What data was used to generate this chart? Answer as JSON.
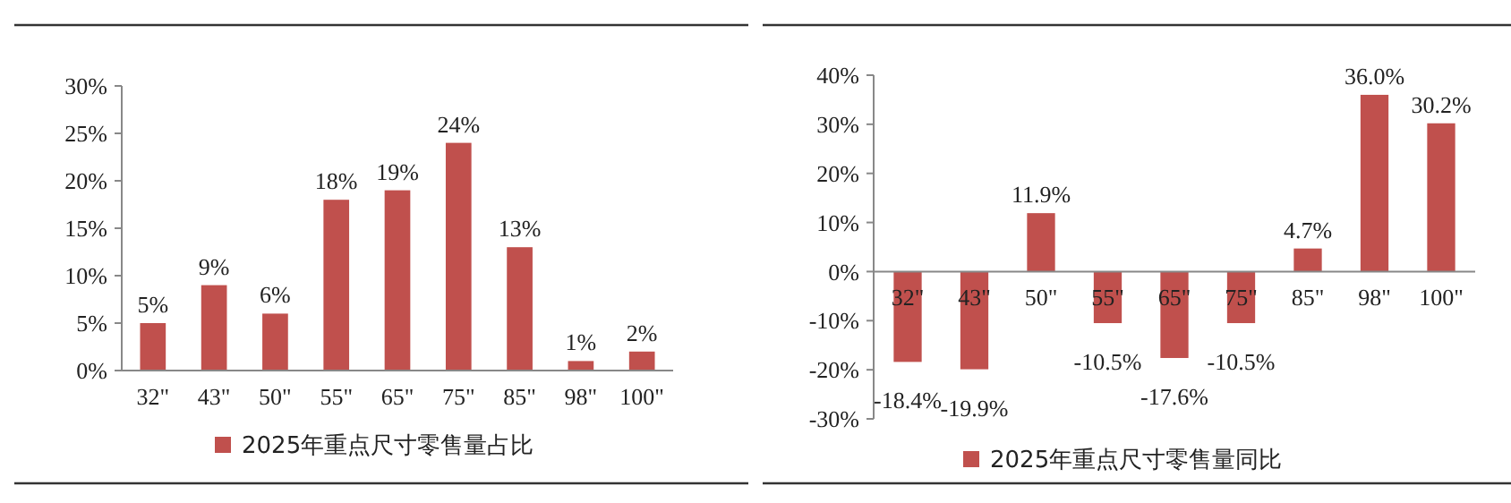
{
  "chart_data": [
    {
      "type": "bar",
      "categories": [
        "32\"",
        "43\"",
        "50\"",
        "55\"",
        "65\"",
        "75\"",
        "85\"",
        "98\"",
        "100\""
      ],
      "series": [
        {
          "name": "2025年重点尺寸零售量占比",
          "color": "#c0504d",
          "values": [
            5,
            9,
            6,
            18,
            19,
            24,
            13,
            1,
            2
          ],
          "value_labels": [
            "5%",
            "9%",
            "6%",
            "18%",
            "19%",
            "24%",
            "13%",
            "1%",
            "2%"
          ]
        }
      ],
      "ylim": [
        0,
        30
      ],
      "yticks": [
        {
          "value": 0,
          "label": "0%"
        },
        {
          "value": 5,
          "label": "5%"
        },
        {
          "value": 10,
          "label": "10%"
        },
        {
          "value": 15,
          "label": "15%"
        },
        {
          "value": 20,
          "label": "20%"
        },
        {
          "value": 25,
          "label": "25%"
        },
        {
          "value": 30,
          "label": "30%"
        }
      ],
      "grid": false,
      "legend": "bottom"
    },
    {
      "type": "bar",
      "categories": [
        "32\"",
        "43\"",
        "50\"",
        "55\"",
        "65\"",
        "75\"",
        "85\"",
        "98\"",
        "100\""
      ],
      "series": [
        {
          "name": "2025年重点尺寸零售量同比",
          "color": "#c0504d",
          "values": [
            -18.4,
            -19.9,
            11.9,
            -10.5,
            -17.6,
            -10.5,
            4.7,
            36.0,
            30.2
          ],
          "value_labels": [
            "-18.4%",
            "-19.9%",
            "11.9%",
            "-10.5%",
            "-17.6%",
            "-10.5%",
            "4.7%",
            "36.0%",
            "30.2%"
          ]
        }
      ],
      "ylim": [
        -30,
        40
      ],
      "yticks": [
        {
          "value": -30,
          "label": "-30%"
        },
        {
          "value": -20,
          "label": "-20%"
        },
        {
          "value": -10,
          "label": "-10%"
        },
        {
          "value": 0,
          "label": "0%"
        },
        {
          "value": 10,
          "label": "10%"
        },
        {
          "value": 20,
          "label": "20%"
        },
        {
          "value": 30,
          "label": "30%"
        },
        {
          "value": 40,
          "label": "40%"
        }
      ],
      "grid": false,
      "legend": "bottom"
    }
  ]
}
